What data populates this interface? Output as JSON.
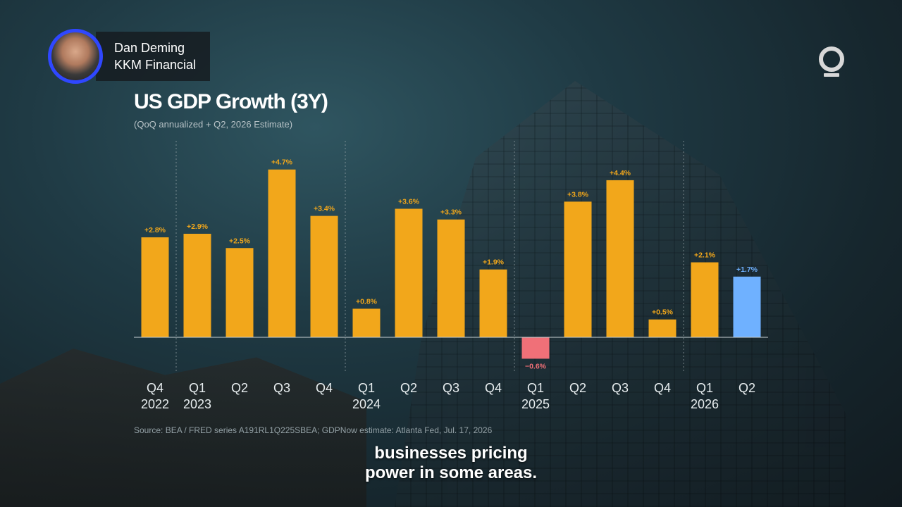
{
  "speaker": {
    "name": "Dan Deming",
    "affiliation": "KKM Financial"
  },
  "logo_icon": "q-logo-icon",
  "caption": {
    "line1": "businesses pricing",
    "line2": "power in some areas."
  },
  "colors": {
    "positive": "#f2a71b",
    "negative": "#f07078",
    "estimate": "#6fb1ff"
  },
  "chart_data": {
    "type": "bar",
    "title": "US GDP Growth (3Y)",
    "subtitle": "(QoQ annualized + Q2, 2026 Estimate)",
    "source": "Source: BEA / FRED series A191RL1Q225SBEA; GDPNow estimate: Atlanta Fed, Jul. 17, 2026",
    "categories": [
      "Q4",
      "Q1",
      "Q2",
      "Q3",
      "Q4",
      "Q1",
      "Q2",
      "Q3",
      "Q4",
      "Q1",
      "Q2",
      "Q3",
      "Q4",
      "Q1",
      "Q2"
    ],
    "years": [
      "2022",
      "2023",
      "",
      "",
      "",
      "2024",
      "",
      "",
      "",
      "2025",
      "",
      "",
      "",
      "2026",
      ""
    ],
    "values": [
      2.8,
      2.9,
      2.5,
      4.7,
      3.4,
      0.8,
      3.6,
      3.3,
      1.9,
      -0.6,
      3.8,
      4.4,
      0.5,
      2.1,
      1.7
    ],
    "labels": [
      "+2.8%",
      "+2.9%",
      "+2.5%",
      "+4.7%",
      "+3.4%",
      "+0.8%",
      "+3.6%",
      "+3.3%",
      "+1.9%",
      "−0.6%",
      "+3.8%",
      "+4.4%",
      "+0.5%",
      "+2.1%",
      "+1.7%"
    ],
    "estimate": [
      false,
      false,
      false,
      false,
      false,
      false,
      false,
      false,
      false,
      false,
      false,
      false,
      false,
      false,
      true
    ],
    "year_dividers_after_index": [
      0,
      4,
      8,
      12
    ],
    "ylim": [
      -1.5,
      5.5
    ],
    "grid": false,
    "legend": "none"
  }
}
